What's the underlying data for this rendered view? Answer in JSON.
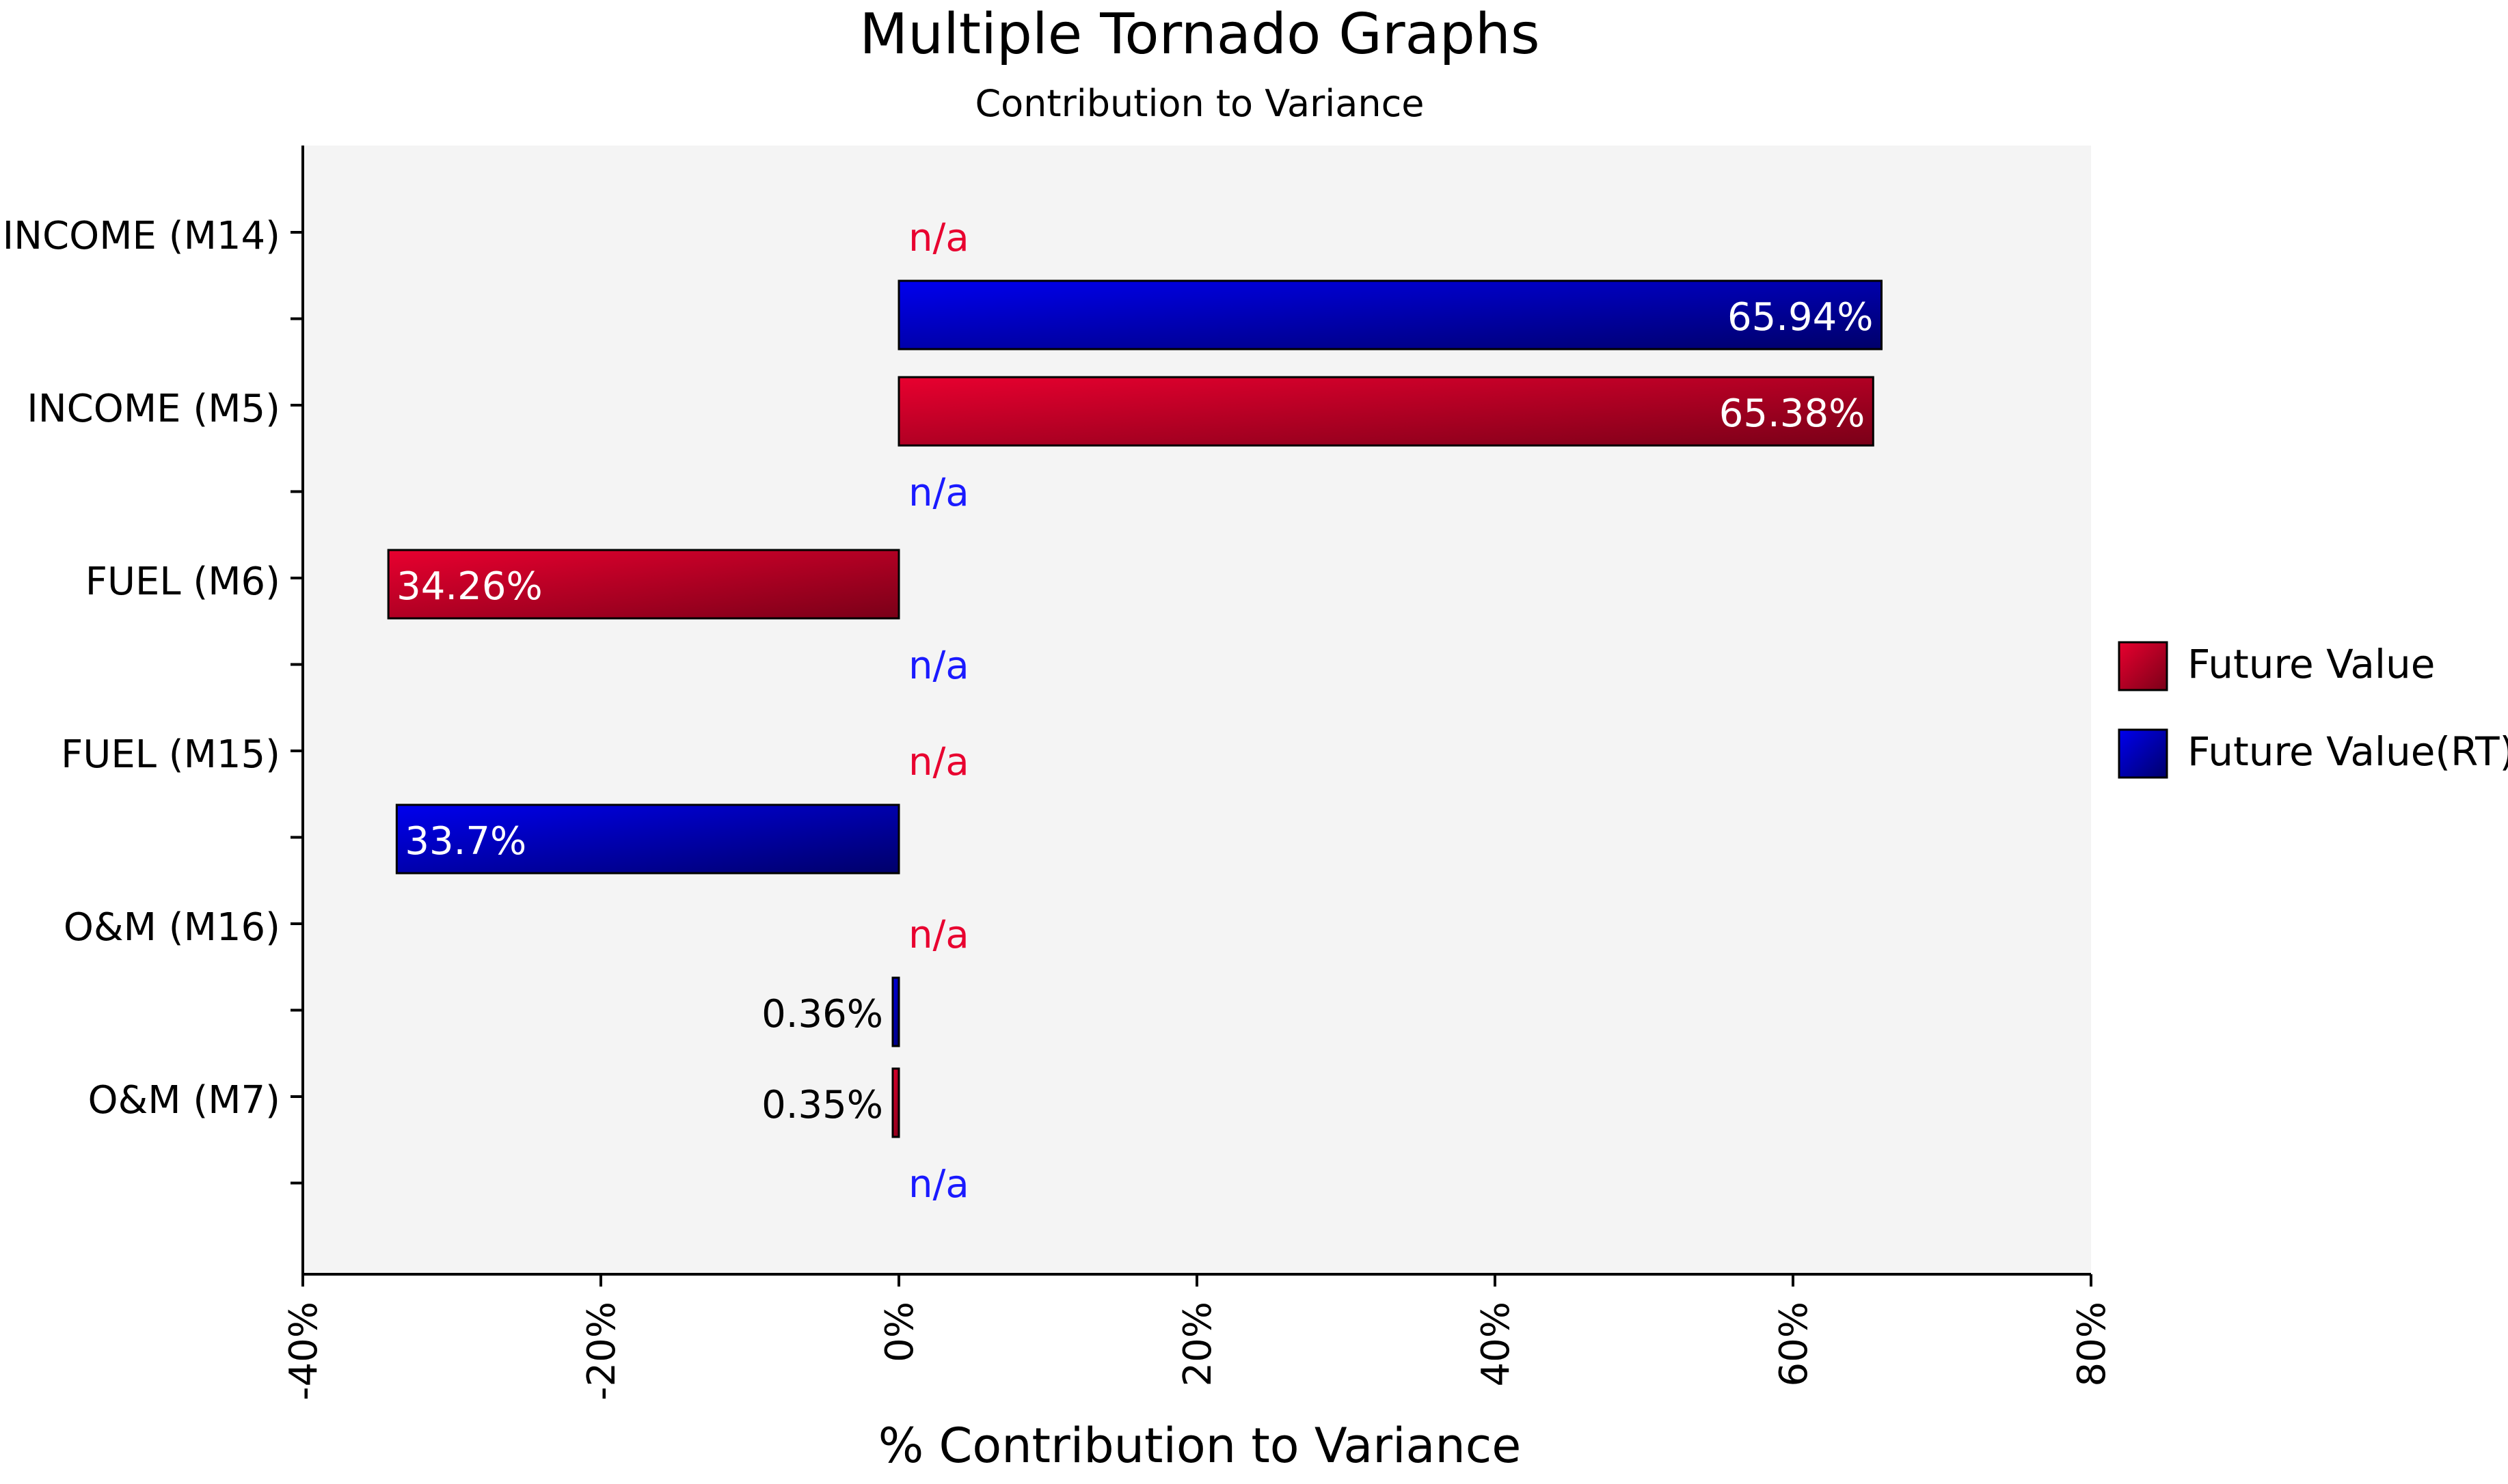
{
  "chart_data": {
    "type": "bar",
    "orientation": "horizontal",
    "title": "Multiple Tornado Graphs",
    "subtitle": "Contribution to Variance",
    "xlabel": "% Contribution to Variance",
    "ylabel": "",
    "xlim": [
      -40,
      80
    ],
    "x_ticks": [
      -40,
      -20,
      0,
      20,
      40,
      60,
      80
    ],
    "x_tick_labels": [
      "-40%",
      "-20%",
      "0%",
      "20%",
      "40%",
      "60%",
      "80%"
    ],
    "grid": false,
    "legend_position": "right",
    "categories": [
      "INCOME (M14)",
      "INCOME (M5)",
      "FUEL (M6)",
      "FUEL (M15)",
      "O&M (M16)",
      "O&M (M7)"
    ],
    "series": [
      {
        "name": "Future Value",
        "color": "#e8002f",
        "color_dark": "#7a0018",
        "bars": [
          {
            "category": "INCOME (M14)",
            "value": null,
            "label": "n/a"
          },
          {
            "category": "INCOME (M5)",
            "value": 65.38,
            "label": "65.38%"
          },
          {
            "category": "FUEL (M6)",
            "value": -34.26,
            "label": "34.26%"
          },
          {
            "category": "FUEL (M15)",
            "value": null,
            "label": "n/a"
          },
          {
            "category": "O&M (M16)",
            "value": null,
            "label": "n/a"
          },
          {
            "category": "O&M (M7)",
            "value": -0.35,
            "label": "0.35%"
          }
        ]
      },
      {
        "name": "Future Value(RT)",
        "color": "#0000ee",
        "color_dark": "#00006a",
        "bars": [
          {
            "category": "INCOME (M14)",
            "value": 65.94,
            "label": "65.94%"
          },
          {
            "category": "INCOME (M5)",
            "value": null,
            "label": "n/a"
          },
          {
            "category": "FUEL (M6)",
            "value": null,
            "label": "n/a"
          },
          {
            "category": "FUEL (M15)",
            "value": -33.7,
            "label": "33.7%"
          },
          {
            "category": "O&M (M16)",
            "value": -0.36,
            "label": "0.36%"
          },
          {
            "category": "O&M (M7)",
            "value": null,
            "label": "n/a"
          }
        ]
      }
    ],
    "colors": {
      "plot_background": "#f4f4f4",
      "na_future_value": "#e8002f",
      "na_future_value_rt": "#1a1aff",
      "axis": "#000000"
    }
  }
}
